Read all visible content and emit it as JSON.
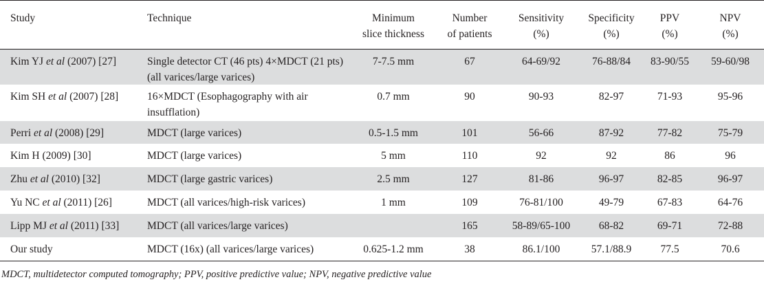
{
  "table": {
    "headers": {
      "study": "Study",
      "technique": "Technique",
      "min_slice_line1": "Minimum",
      "min_slice_line2": "slice thickness",
      "num_line1": "Number",
      "num_line2": "of patients",
      "sens_line1": "Sensitivity",
      "sens_line2": "(%)",
      "spec_line1": "Specificity",
      "spec_line2": "(%)",
      "ppv_line1": "PPV",
      "ppv_line2": "(%)",
      "npv_line1": "NPV",
      "npv_line2": "(%)"
    },
    "rows": [
      {
        "author": "Kim YJ ",
        "etal": "",
        "year_ref": "(2007) [27]",
        "etal_inline": true,
        "technique": "Single detector CT (46 pts) 4×MDCT (21 pts) (all varices/large varices)",
        "slice": "7-7.5 mm",
        "patients": "67",
        "sensitivity": "64-69/92",
        "specificity": "76-88/84",
        "ppv": "83-90/55",
        "npv": "59-60/98"
      },
      {
        "author": "Kim SH ",
        "etal": "et al",
        "year_ref": " (2007) [28]",
        "technique": "16×MDCT (Esophagography with air insufflation)",
        "slice": "0.7 mm",
        "patients": "90",
        "sensitivity": "90-93",
        "specificity": "82-97",
        "ppv": "71-93",
        "npv": "95-96"
      },
      {
        "author": "Perri ",
        "etal": "et al",
        "year_ref": " (2008) [29]",
        "technique": "MDCT (large varices)",
        "slice": "0.5-1.5 mm",
        "patients": "101",
        "sensitivity": "56-66",
        "specificity": "87-92",
        "ppv": "77-82",
        "npv": "75-79"
      },
      {
        "author": "Kim H (2009) [30]",
        "etal": "",
        "year_ref": "",
        "technique": "MDCT (large varices)",
        "slice": "5 mm",
        "patients": "110",
        "sensitivity": "92",
        "specificity": "92",
        "ppv": "86",
        "npv": "96"
      },
      {
        "author": "Zhu ",
        "etal": "et al",
        "year_ref": " (2010) [32]",
        "technique": "MDCT (large gastric varices)",
        "slice": "2.5 mm",
        "patients": "127",
        "sensitivity": "81-86",
        "specificity": "96-97",
        "ppv": "82-85",
        "npv": "96-97"
      },
      {
        "author": "Yu NC ",
        "etal": "et al",
        "year_ref": " (2011) [26]",
        "technique": "MDCT (all varices/high-risk varices)",
        "slice": "1 mm",
        "patients": "109",
        "sensitivity": "76-81/100",
        "specificity": "49-79",
        "ppv": "67-83",
        "npv": "64-76"
      },
      {
        "author": "Lipp MJ ",
        "etal": "et al",
        "year_ref": " (2011) [33]",
        "technique": "MDCT (all varices/large varices)",
        "slice": "",
        "patients": "165",
        "sensitivity": "58-89/65-100",
        "specificity": "68-82",
        "ppv": "69-71",
        "npv": "72-88"
      },
      {
        "author": "Our study",
        "etal": "",
        "year_ref": "",
        "technique": "MDCT (16x) (all varices/large varices)",
        "slice": "0.625-1.2 mm",
        "patients": "38",
        "sensitivity": "86.1/100",
        "specificity": "57.1/88.9",
        "ppv": "77.5",
        "npv": "70.6"
      }
    ],
    "row0_author": "Kim YJ ",
    "row0_etal": "et al",
    "row0_year": " (2007) [27]"
  },
  "footnote": "MDCT, multidetector computed tomography; PPV, positive predictive value; NPV, negative predictive value"
}
